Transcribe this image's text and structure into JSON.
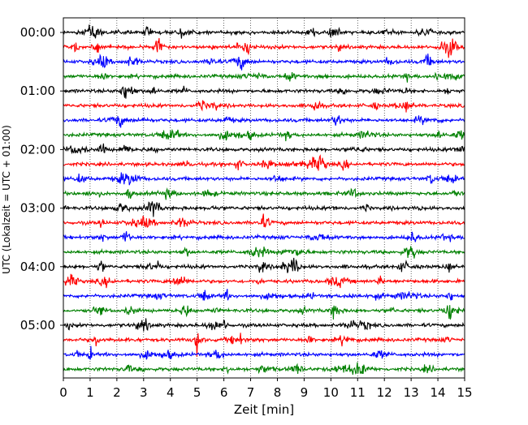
{
  "chart_data": {
    "type": "line",
    "title": "",
    "xlabel": "Zeit  [min]",
    "ylabel": "UTC (Lokalzeit = UTC + 01:00)",
    "xlim": [
      0,
      15
    ],
    "x_ticks": [
      "0",
      "1",
      "2",
      "3",
      "4",
      "5",
      "6",
      "7",
      "8",
      "9",
      "10",
      "11",
      "12",
      "13",
      "14",
      "15"
    ],
    "y_ticks": [
      "00:00",
      "01:00",
      "02:00",
      "03:00",
      "04:00",
      "05:00"
    ],
    "grid": "vertical dotted at each minute",
    "trace_interval": "00:15",
    "trace_count": 24,
    "trace_colors": [
      "#000000",
      "#ff0000",
      "#0000ff",
      "#008000"
    ],
    "notable_events": [
      {
        "trace": 21,
        "x": 5.0,
        "note": "larger spike"
      },
      {
        "trace": 22,
        "x": 1.0,
        "note": "burst"
      }
    ]
  }
}
